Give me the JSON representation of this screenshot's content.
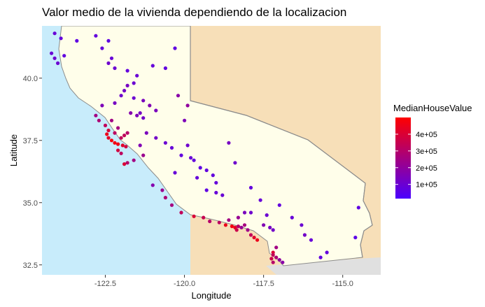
{
  "chart_data": {
    "type": "scatter",
    "title": "Valor medio de la vivienda dependiendo de la localizacion",
    "xlabel": "Longitude",
    "ylabel": "Latitude",
    "xlim": [
      -124.5,
      -113.8
    ],
    "ylim": [
      32.1,
      42.1
    ],
    "x_ticks": [
      {
        "value": -122.5,
        "label": "-122.5"
      },
      {
        "value": -120.0,
        "label": "-120.0"
      },
      {
        "value": -117.5,
        "label": "-117.5"
      },
      {
        "value": -115.0,
        "label": "-115.0"
      }
    ],
    "y_ticks": [
      {
        "value": 32.5,
        "label": "32.5"
      },
      {
        "value": 35.0,
        "label": "35.0"
      },
      {
        "value": 37.5,
        "label": "37.5"
      },
      {
        "value": 40.0,
        "label": "40.0"
      }
    ],
    "grid": false,
    "legend": {
      "title": "MedianHouseValue",
      "placement": "right",
      "color_low": "#4b00ff",
      "color_high": "#ff0000",
      "range": [
        15000,
        500000
      ],
      "breaks": [
        {
          "value": 100000,
          "label": "1e+05"
        },
        {
          "value": 200000,
          "label": "2e+05"
        },
        {
          "value": 300000,
          "label": "3e+05"
        },
        {
          "value": 400000,
          "label": "4e+05"
        }
      ]
    },
    "map_colors": {
      "ocean": "#c8ecfb",
      "land": "#f7dfb8",
      "california": "#fffeea",
      "border": "#8c8c8c"
    },
    "points": [
      [
        -124.1,
        41.8,
        90000
      ],
      [
        -123.9,
        41.6,
        80000
      ],
      [
        -124.2,
        41.0,
        95000
      ],
      [
        -124.1,
        40.8,
        110000
      ],
      [
        -124.0,
        40.6,
        100000
      ],
      [
        -123.8,
        40.9,
        75000
      ],
      [
        -123.4,
        41.5,
        70000
      ],
      [
        -122.8,
        41.7,
        80000
      ],
      [
        -122.4,
        41.5,
        70000
      ],
      [
        -122.6,
        41.2,
        85000
      ],
      [
        -122.3,
        40.8,
        90000
      ],
      [
        -122.4,
        40.6,
        110000
      ],
      [
        -122.2,
        40.4,
        100000
      ],
      [
        -121.8,
        40.3,
        80000
      ],
      [
        -121.5,
        40.1,
        95000
      ],
      [
        -121.0,
        40.5,
        85000
      ],
      [
        -120.6,
        40.4,
        75000
      ],
      [
        -120.3,
        41.2,
        70000
      ],
      [
        -121.6,
        39.8,
        100000
      ],
      [
        -121.8,
        39.7,
        130000
      ],
      [
        -121.9,
        39.5,
        120000
      ],
      [
        -122.0,
        39.3,
        110000
      ],
      [
        -121.6,
        39.2,
        100000
      ],
      [
        -121.3,
        39.1,
        140000
      ],
      [
        -121.1,
        38.9,
        160000
      ],
      [
        -120.9,
        38.7,
        140000
      ],
      [
        -121.4,
        38.6,
        130000
      ],
      [
        -121.5,
        38.5,
        150000
      ],
      [
        -121.3,
        38.4,
        120000
      ],
      [
        -121.7,
        38.6,
        170000
      ],
      [
        -122.2,
        39.0,
        130000
      ],
      [
        -122.6,
        38.9,
        150000
      ],
      [
        -122.8,
        38.5,
        250000
      ],
      [
        -122.7,
        38.3,
        280000
      ],
      [
        -122.5,
        38.1,
        330000
      ],
      [
        -122.3,
        38.3,
        250000
      ],
      [
        -122.1,
        38.0,
        260000
      ],
      [
        -122.4,
        37.9,
        390000
      ],
      [
        -122.45,
        37.75,
        450000
      ],
      [
        -122.4,
        37.6,
        430000
      ],
      [
        -122.3,
        37.5,
        480000
      ],
      [
        -122.2,
        37.4,
        470000
      ],
      [
        -122.1,
        37.35,
        460000
      ],
      [
        -121.95,
        37.3,
        420000
      ],
      [
        -121.85,
        37.25,
        380000
      ],
      [
        -122.0,
        37.6,
        330000
      ],
      [
        -121.9,
        37.7,
        330000
      ],
      [
        -121.8,
        37.8,
        300000
      ],
      [
        -122.2,
        37.8,
        320000
      ],
      [
        -122.1,
        37.1,
        380000
      ],
      [
        -122.0,
        36.98,
        320000
      ],
      [
        -121.8,
        36.6,
        300000
      ],
      [
        -121.9,
        36.55,
        400000
      ],
      [
        -121.6,
        36.7,
        250000
      ],
      [
        -121.3,
        36.9,
        230000
      ],
      [
        -121.4,
        37.3,
        160000
      ],
      [
        -121.2,
        37.8,
        140000
      ],
      [
        -120.9,
        37.6,
        120000
      ],
      [
        -120.6,
        37.4,
        100000
      ],
      [
        -120.4,
        37.2,
        90000
      ],
      [
        -120.1,
        36.9,
        80000
      ],
      [
        -119.8,
        36.8,
        90000
      ],
      [
        -119.7,
        36.7,
        80000
      ],
      [
        -119.5,
        36.4,
        70000
      ],
      [
        -119.3,
        36.3,
        75000
      ],
      [
        -119.1,
        36.1,
        80000
      ],
      [
        -119.0,
        35.8,
        85000
      ],
      [
        -119.0,
        35.4,
        90000
      ],
      [
        -118.8,
        35.3,
        95000
      ],
      [
        -119.3,
        35.5,
        70000
      ],
      [
        -119.9,
        37.3,
        110000
      ],
      [
        -120.0,
        38.3,
        150000
      ],
      [
        -119.9,
        38.9,
        200000
      ],
      [
        -120.2,
        39.3,
        180000
      ],
      [
        -118.6,
        37.4,
        130000
      ],
      [
        -118.4,
        36.6,
        110000
      ],
      [
        -117.9,
        35.6,
        80000
      ],
      [
        -117.6,
        35.1,
        90000
      ],
      [
        -117.0,
        34.9,
        80000
      ],
      [
        -116.6,
        34.4,
        90000
      ],
      [
        -116.3,
        34.1,
        100000
      ],
      [
        -116.2,
        33.7,
        120000
      ],
      [
        -116.0,
        33.5,
        90000
      ],
      [
        -115.5,
        33.0,
        80000
      ],
      [
        -115.7,
        32.8,
        75000
      ],
      [
        -114.6,
        33.6,
        60000
      ],
      [
        -114.5,
        34.8,
        70000
      ],
      [
        -120.7,
        35.5,
        230000
      ],
      [
        -120.6,
        35.2,
        280000
      ],
      [
        -120.4,
        34.9,
        260000
      ],
      [
        -120.1,
        34.6,
        330000
      ],
      [
        -119.7,
        34.45,
        400000
      ],
      [
        -119.4,
        34.4,
        350000
      ],
      [
        -119.2,
        34.25,
        300000
      ],
      [
        -118.9,
        34.2,
        320000
      ],
      [
        -118.7,
        34.1,
        450000
      ],
      [
        -118.5,
        34.05,
        470000
      ],
      [
        -118.4,
        34.0,
        440000
      ],
      [
        -118.35,
        33.9,
        360000
      ],
      [
        -118.3,
        34.05,
        300000
      ],
      [
        -118.2,
        34.0,
        220000
      ],
      [
        -118.1,
        34.1,
        260000
      ],
      [
        -118.0,
        33.9,
        240000
      ],
      [
        -117.9,
        33.7,
        330000
      ],
      [
        -117.8,
        33.6,
        420000
      ],
      [
        -117.7,
        33.5,
        450000
      ],
      [
        -117.5,
        34.1,
        160000
      ],
      [
        -117.3,
        34.0,
        130000
      ],
      [
        -117.2,
        33.9,
        120000
      ],
      [
        -117.1,
        33.2,
        250000
      ],
      [
        -117.2,
        33.0,
        400000
      ],
      [
        -117.2,
        32.9,
        330000
      ],
      [
        -117.1,
        32.8,
        280000
      ],
      [
        -117.0,
        32.7,
        200000
      ],
      [
        -116.9,
        32.6,
        180000
      ],
      [
        -117.25,
        32.75,
        360000
      ],
      [
        -117.2,
        32.6,
        300000
      ],
      [
        -118.6,
        34.3,
        250000
      ],
      [
        -118.3,
        34.4,
        220000
      ],
      [
        -118.1,
        34.6,
        140000
      ],
      [
        -117.9,
        34.6,
        110000
      ],
      [
        -117.4,
        34.5,
        100000
      ],
      [
        -121.0,
        35.7,
        170000
      ],
      [
        -120.3,
        36.2,
        90000
      ],
      [
        -119.6,
        36.0,
        85000
      ]
    ]
  }
}
